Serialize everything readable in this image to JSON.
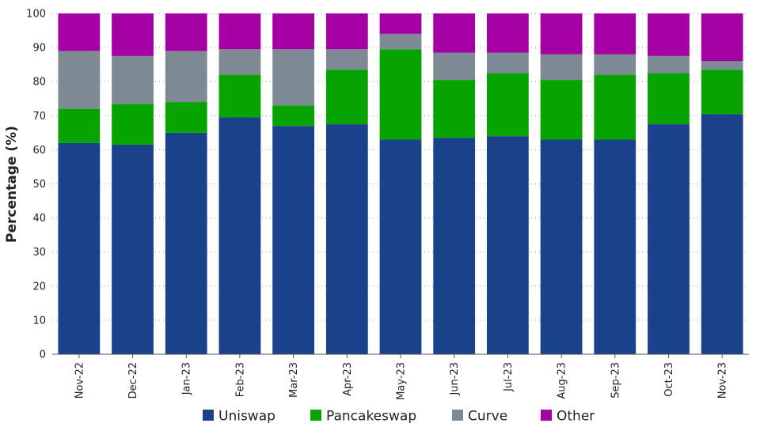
{
  "chart_data": {
    "type": "bar",
    "stacked": true,
    "categories": [
      "Nov-22",
      "Dec-22",
      "Jan-23",
      "Feb-23",
      "Mar-23",
      "Apr-23",
      "May-23",
      "Jun-23",
      "Jul-23",
      "Aug-23",
      "Sep-23",
      "Oct-23",
      "Nov-23"
    ],
    "series": [
      {
        "name": "Uniswap",
        "color": "#1a428a",
        "values": [
          62,
          61.5,
          65,
          69.5,
          67,
          67.5,
          63,
          63.5,
          64,
          63,
          63,
          67.5,
          70.5
        ]
      },
      {
        "name": "Pancakeswap",
        "color": "#07a300",
        "values": [
          10,
          12,
          9,
          12.5,
          6,
          16,
          26.5,
          17,
          18.5,
          17.5,
          19,
          15,
          13
        ]
      },
      {
        "name": "Curve",
        "color": "#7e8a93",
        "values": [
          17,
          14,
          15,
          7.5,
          16.5,
          6,
          4.5,
          8,
          6,
          7.5,
          6,
          5,
          2.5
        ]
      },
      {
        "name": "Other",
        "color": "#a400a4",
        "values": [
          11,
          12.5,
          11,
          10.5,
          10.5,
          10.5,
          6,
          11.5,
          11.5,
          12,
          12,
          12.5,
          14
        ]
      }
    ],
    "title": "",
    "xlabel": "",
    "ylabel": "Percentage  (%)",
    "ylim": [
      0,
      100
    ],
    "yticks": [
      0,
      10,
      20,
      30,
      40,
      50,
      60,
      70,
      80,
      90,
      100
    ],
    "grid": "horizontal-dotted",
    "legend_position": "bottom"
  }
}
